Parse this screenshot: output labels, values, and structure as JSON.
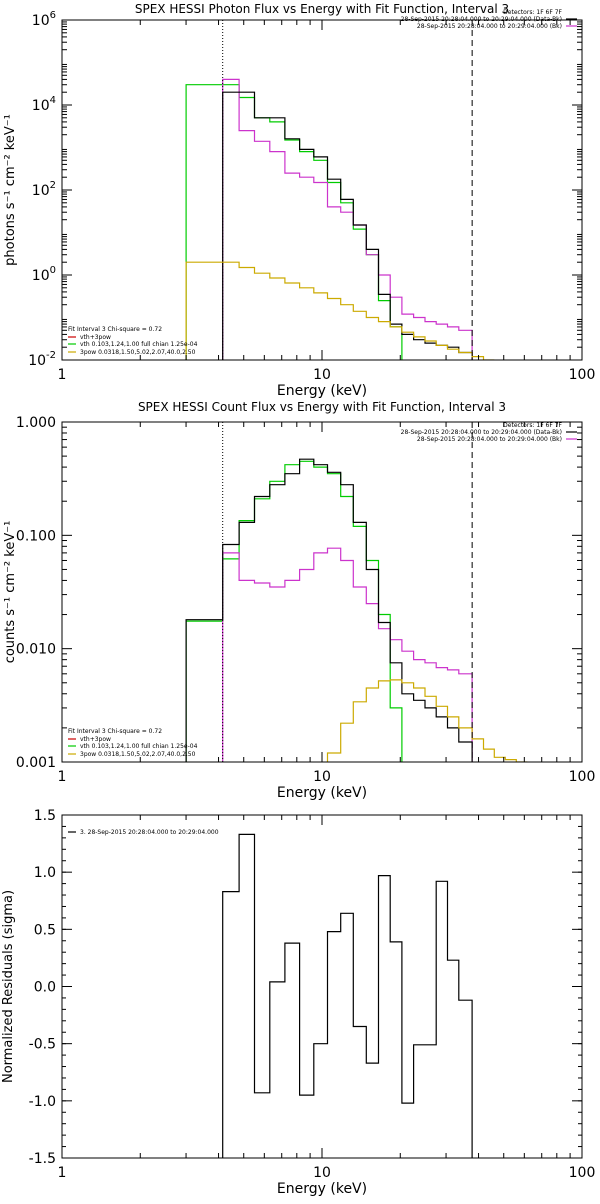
{
  "chart_data": [
    {
      "type": "line",
      "title": "SPEX HESSI Photon Flux vs Energy with Fit Function, Interval 3",
      "xlabel": "Energy (keV)",
      "ylabel": "photons s⁻¹ cm⁻² keV⁻¹",
      "xscale": "log",
      "yscale": "log",
      "xlim": [
        1,
        100
      ],
      "ylim": [
        0.01,
        1000000
      ],
      "x_ticks": [
        {
          "v": 1,
          "label": "1"
        },
        {
          "v": 10,
          "label": "10"
        },
        {
          "v": 100,
          "label": "100"
        }
      ],
      "y_ticks": [
        {
          "v": 0.01,
          "base": "10",
          "exp": "-2"
        },
        {
          "v": 1,
          "base": "10",
          "exp": "0"
        },
        {
          "v": 100,
          "base": "10",
          "exp": "2"
        },
        {
          "v": 10000,
          "base": "10",
          "exp": "4"
        },
        {
          "v": 1000000,
          "base": "10",
          "exp": "6"
        }
      ],
      "vlines": [
        {
          "x": 4.15,
          "style": "dotted"
        },
        {
          "x": 37.8,
          "style": "dashed"
        }
      ],
      "header": [
        "Detectors: 1F 6F 7F",
        "28-Sep-2015 20:28:04.000 to 20:29:04.000 (Data-Bk)",
        "28-Sep-2015 20:28:04.000 to 20:29:04.000 (Bk)"
      ],
      "header_colors": [
        "",
        "#000000",
        "#cc33cc"
      ],
      "legend_title": "Fit Interval 3   Chi-square = 0.72",
      "legend": [
        {
          "label": "vth+3pow",
          "color": "#cc0000"
        },
        {
          "label": "vth 0.103,1.24,1.00  full chian 1.25e-04",
          "color": "#00cc00"
        },
        {
          "label": "3pow 0.0318,1.50,5.02,2.07,40.0,2.50",
          "color": "#ccaa00"
        }
      ],
      "series": [
        {
          "color": "#00cc00",
          "edges": [
            3.0,
            4.15,
            4.8,
            5.5,
            6.3,
            7.2,
            8.2,
            9.3,
            10.5,
            11.8,
            13.2,
            14.8,
            16.5,
            18.3,
            20.3
          ],
          "values": [
            30000,
            30000,
            15000,
            5000,
            4000,
            1500,
            800,
            500,
            150,
            50,
            12,
            3,
            0.25,
            0.06
          ]
        },
        {
          "color": "#cc33cc",
          "edges": [
            4.15,
            4.8,
            5.5,
            6.3,
            7.2,
            8.2,
            9.3,
            10.5,
            11.8,
            13.2,
            14.8,
            16.5,
            18.3,
            20.3,
            22.5,
            24.9,
            27.5,
            30.4,
            33.6,
            37.8
          ],
          "values": [
            40000,
            2500,
            1400,
            800,
            250,
            200,
            150,
            40,
            30,
            15,
            3,
            1,
            0.3,
            0.12,
            0.1,
            0.08,
            0.07,
            0.06,
            0.05
          ]
        },
        {
          "color": "#000000",
          "edges": [
            4.15,
            4.8,
            5.5,
            6.3,
            7.2,
            8.2,
            9.3,
            10.5,
            11.8,
            13.2,
            14.8,
            16.5,
            18.3,
            20.3,
            22.5,
            24.9,
            27.5,
            30.4,
            33.6,
            37.8
          ],
          "values": [
            20000,
            20000,
            5000,
            5000,
            1600,
            900,
            600,
            180,
            60,
            15,
            4,
            0.35,
            0.07,
            0.04,
            0.03,
            0.025,
            0.022,
            0.02,
            0.015
          ]
        },
        {
          "color": "#ccaa00",
          "edges": [
            3.0,
            4.15,
            4.8,
            5.5,
            6.3,
            7.2,
            8.2,
            9.3,
            10.5,
            11.8,
            13.2,
            14.8,
            16.5,
            18.3,
            20.3,
            22.5,
            24.9,
            27.5,
            30.4,
            33.6,
            37.8,
            41.8,
            46.0
          ],
          "values": [
            2.0,
            2.0,
            1.5,
            1.1,
            0.85,
            0.65,
            0.5,
            0.38,
            0.28,
            0.2,
            0.14,
            0.1,
            0.08,
            0.06,
            0.045,
            0.035,
            0.028,
            0.022,
            0.018,
            0.015,
            0.012,
            0.01
          ]
        }
      ]
    },
    {
      "type": "line",
      "title": "SPEX HESSI Count Flux vs Energy with Fit Function, Interval 3",
      "xlabel": "Energy (keV)",
      "ylabel": "counts s⁻¹ cm⁻² keV⁻¹",
      "xscale": "log",
      "yscale": "log",
      "xlim": [
        1,
        100
      ],
      "ylim": [
        0.001,
        1.0
      ],
      "x_ticks": [
        {
          "v": 1,
          "label": "1"
        },
        {
          "v": 10,
          "label": "10"
        },
        {
          "v": 100,
          "label": "100"
        }
      ],
      "y_ticks": [
        {
          "v": 0.001,
          "label": "0.001"
        },
        {
          "v": 0.01,
          "label": "0.010"
        },
        {
          "v": 0.1,
          "label": "0.100"
        },
        {
          "v": 1.0,
          "label": "1.000"
        }
      ],
      "vlines": [
        {
          "x": 4.15,
          "style": "dotted"
        },
        {
          "x": 37.8,
          "style": "dashed"
        }
      ],
      "header": [
        "Detectors: 1F 6F 7F",
        "28-Sep-2015 20:28:04.000 to 20:29:04.000 (Data-Bk)",
        "28-Sep-2015 20:28:04.000 to 20:29:04.000 (Bk)"
      ],
      "header_colors": [
        "",
        "#000000",
        "#cc33cc"
      ],
      "legend_title": "Fit Interval 3   Chi-square = 0.72",
      "legend": [
        {
          "label": "vth+3pow",
          "color": "#cc0000"
        },
        {
          "label": "vth 0.103,1.24,1.00  full chian 1.25e-04",
          "color": "#00cc00"
        },
        {
          "label": "3pow 0.0318,1.50,5.02,2.07,40.0,2.50",
          "color": "#ccaa00"
        }
      ],
      "series": [
        {
          "color": "#00cc00",
          "edges": [
            3.0,
            4.15,
            4.8,
            5.5,
            6.3,
            7.2,
            8.2,
            9.3,
            10.5,
            11.8,
            13.2,
            14.8,
            16.5,
            18.3,
            20.3
          ],
          "values": [
            0.0175,
            0.062,
            0.135,
            0.21,
            0.3,
            0.42,
            0.45,
            0.4,
            0.35,
            0.22,
            0.12,
            0.06,
            0.02,
            0.003
          ]
        },
        {
          "color": "#cc33cc",
          "edges": [
            4.15,
            4.8,
            5.5,
            6.3,
            7.2,
            8.2,
            9.3,
            10.5,
            11.8,
            13.2,
            14.8,
            16.5,
            18.3,
            20.3,
            22.5,
            24.9,
            27.5,
            30.4,
            33.6,
            37.8
          ],
          "values": [
            0.07,
            0.04,
            0.038,
            0.035,
            0.04,
            0.05,
            0.07,
            0.077,
            0.06,
            0.035,
            0.025,
            0.015,
            0.012,
            0.0095,
            0.008,
            0.0075,
            0.0068,
            0.0065,
            0.006
          ]
        },
        {
          "color": "#000000",
          "edges": [
            3.0,
            4.15,
            4.8,
            5.5,
            6.3,
            7.2,
            8.2,
            9.3,
            10.5,
            11.8,
            13.2,
            14.8,
            16.5,
            18.3,
            20.3,
            22.5,
            24.9,
            27.5,
            30.4,
            33.6,
            37.8
          ],
          "values": [
            0.018,
            0.083,
            0.13,
            0.22,
            0.28,
            0.35,
            0.47,
            0.42,
            0.36,
            0.28,
            0.13,
            0.05,
            0.017,
            0.0075,
            0.004,
            0.0035,
            0.003,
            0.0025,
            0.002,
            0.0015
          ]
        },
        {
          "color": "#ccaa00",
          "edges": [
            10.5,
            11.8,
            13.2,
            14.8,
            16.5,
            18.3,
            20.3,
            22.5,
            24.9,
            27.5,
            30.4,
            33.6,
            37.8,
            41.8,
            46.0,
            50.7,
            55.9,
            61.6
          ],
          "values": [
            0.0012,
            0.0022,
            0.0034,
            0.0045,
            0.0052,
            0.0053,
            0.005,
            0.0045,
            0.0038,
            0.0031,
            0.0025,
            0.002,
            0.0016,
            0.0013,
            0.0011,
            0.00105,
            0.001
          ]
        }
      ]
    },
    {
      "type": "line",
      "title": "",
      "xlabel": "Energy (keV)",
      "ylabel": "Normalized Residuals (sigma)",
      "xscale": "log",
      "yscale": "linear",
      "xlim": [
        1,
        100
      ],
      "ylim": [
        -1.5,
        1.5
      ],
      "x_ticks": [
        {
          "v": 1,
          "label": "1"
        },
        {
          "v": 10,
          "label": "10"
        },
        {
          "v": 100,
          "label": "100"
        }
      ],
      "y_ticks": [
        {
          "v": -1.5,
          "label": "-1.5"
        },
        {
          "v": -1.0,
          "label": "-1.0"
        },
        {
          "v": -0.5,
          "label": "-0.5"
        },
        {
          "v": 0.0,
          "label": "0.0"
        },
        {
          "v": 0.5,
          "label": "0.5"
        },
        {
          "v": 1.0,
          "label": "1.0"
        },
        {
          "v": 1.5,
          "label": "1.5"
        }
      ],
      "legend": [
        {
          "label": "3. 28-Sep-2015 20:28:04.000 to 20:29:04.000",
          "color": "#000000"
        }
      ],
      "series": [
        {
          "color": "#000000",
          "edges": [
            4.15,
            4.8,
            5.5,
            6.3,
            7.2,
            8.2,
            9.3,
            10.5,
            11.8,
            13.2,
            14.8,
            16.5,
            18.3,
            20.3,
            22.5,
            24.9,
            27.5,
            30.4,
            33.6,
            37.8
          ],
          "values": [
            0.83,
            1.33,
            -0.93,
            0.04,
            0.38,
            -0.95,
            -0.5,
            0.48,
            0.64,
            -0.35,
            -0.67,
            0.97,
            0.39,
            -1.02,
            -0.51,
            -0.51,
            0.92,
            0.23,
            -0.12
          ]
        }
      ]
    }
  ]
}
